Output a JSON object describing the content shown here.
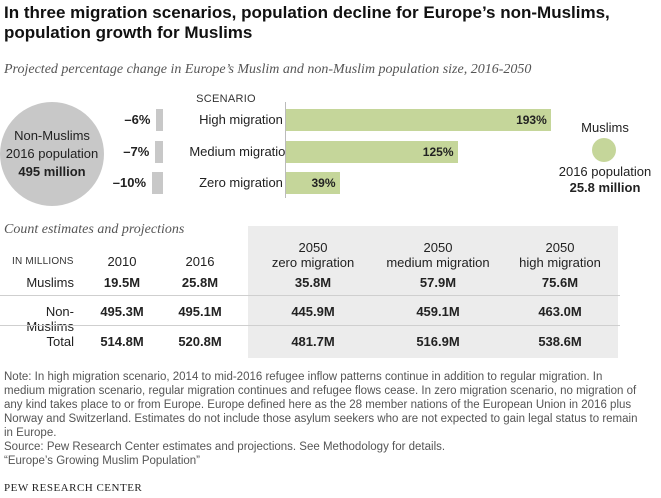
{
  "title": "In three migration scenarios, population decline for Europe’s non-Muslims, population growth for Muslims",
  "subtitle": "Projected percentage change in Europe’s Muslim and non-Muslim population size, 2016-2050",
  "non_muslims": {
    "label": "Non-Muslims",
    "sub": "2016 population",
    "value": "495 million"
  },
  "muslims": {
    "label": "Muslims",
    "sub": "2016 population",
    "value": "25.8 million"
  },
  "colors": {
    "muslim": "#c5d69a",
    "non_muslim": "#c8c8c8"
  },
  "chart_data": {
    "type": "bar",
    "title": "Projected percentage change in Europe’s Muslim and non-Muslim population size, 2016-2050",
    "scenario_header": "SCENARIO",
    "categories": [
      "High migration",
      "Medium migration",
      "Zero migration"
    ],
    "series": [
      {
        "name": "Non-Muslims",
        "values": [
          -6,
          -7,
          -10
        ],
        "labels": [
          "–6%",
          "–7%",
          "–10%"
        ]
      },
      {
        "name": "Muslims",
        "values": [
          193,
          125,
          39
        ],
        "labels": [
          "193%",
          "125%",
          "39%"
        ]
      }
    ],
    "xlim_muslim": [
      0,
      200
    ],
    "xlim_non_muslim": [
      -10,
      0
    ]
  },
  "table": {
    "title": "Count estimates and projections",
    "units_label": "IN MILLIONS",
    "columns": [
      {
        "line1": "2010",
        "line2": ""
      },
      {
        "line1": "2016",
        "line2": ""
      },
      {
        "line1": "2050",
        "line2": "zero migration"
      },
      {
        "line1": "2050",
        "line2": "medium migration"
      },
      {
        "line1": "2050",
        "line2": "high migration"
      }
    ],
    "rows": [
      {
        "label": "Muslims",
        "values": [
          "19.5M",
          "25.8M",
          "35.8M",
          "57.9M",
          "75.6M"
        ]
      },
      {
        "label": "Non-Muslims",
        "values": [
          "495.3M",
          "495.1M",
          "445.9M",
          "459.1M",
          "463.0M"
        ]
      },
      {
        "label": "Total",
        "values": [
          "514.8M",
          "520.8M",
          "481.7M",
          "516.9M",
          "538.6M"
        ]
      }
    ]
  },
  "note": "Note: In high migration scenario, 2014 to mid-2016 refugee inflow patterns continue in addition to regular migration. In medium migration scenario, regular migration continues and refugee flows cease. In zero migration scenario, no migration of any kind takes place to or from Europe. Europe defined here as the 28 member nations of the European Union in 2016 plus Norway and Switzerland. Estimates do not include those asylum seekers who are not expected to gain legal status to remain in Europe.",
  "source": "Source: Pew Research Center estimates and projections. See Methodology for details.",
  "report": "“Europe’s Growing Muslim Population”",
  "logo": "PEW RESEARCH CENTER"
}
